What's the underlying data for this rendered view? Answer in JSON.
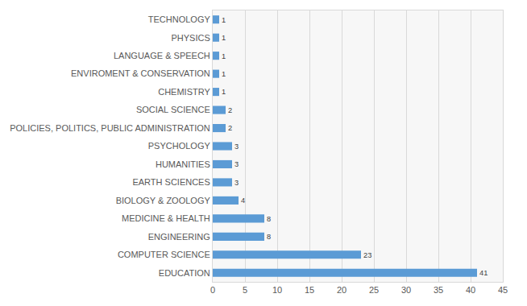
{
  "chart_data": {
    "type": "bar",
    "orientation": "horizontal",
    "categories": [
      "EDUCATION",
      "COMPUTER SCIENCE",
      "ENGINEERING",
      "MEDICINE & HEALTH",
      "BIOLOGY & ZOOLOGY",
      "EARTH SCIENCES",
      "HUMANITIES",
      "PSYCHOLOGY",
      "POLICIES, POLITICS, PUBLIC ADMINISTRATION",
      "SOCIAL SCIENCE",
      "CHEMISTRY",
      "ENVIROMENT & CONSERVATION",
      "LANGUAGE & SPEECH",
      "PHYSICS",
      "TECHNOLOGY"
    ],
    "values": [
      41,
      23,
      8,
      8,
      4,
      3,
      3,
      3,
      2,
      2,
      1,
      1,
      1,
      1,
      1
    ],
    "color": "#5b9bd5",
    "xlim": [
      0,
      45
    ],
    "xticks": [
      0,
      5,
      10,
      15,
      20,
      25,
      30,
      35,
      40,
      45
    ],
    "grid": true,
    "data_labels": true
  }
}
